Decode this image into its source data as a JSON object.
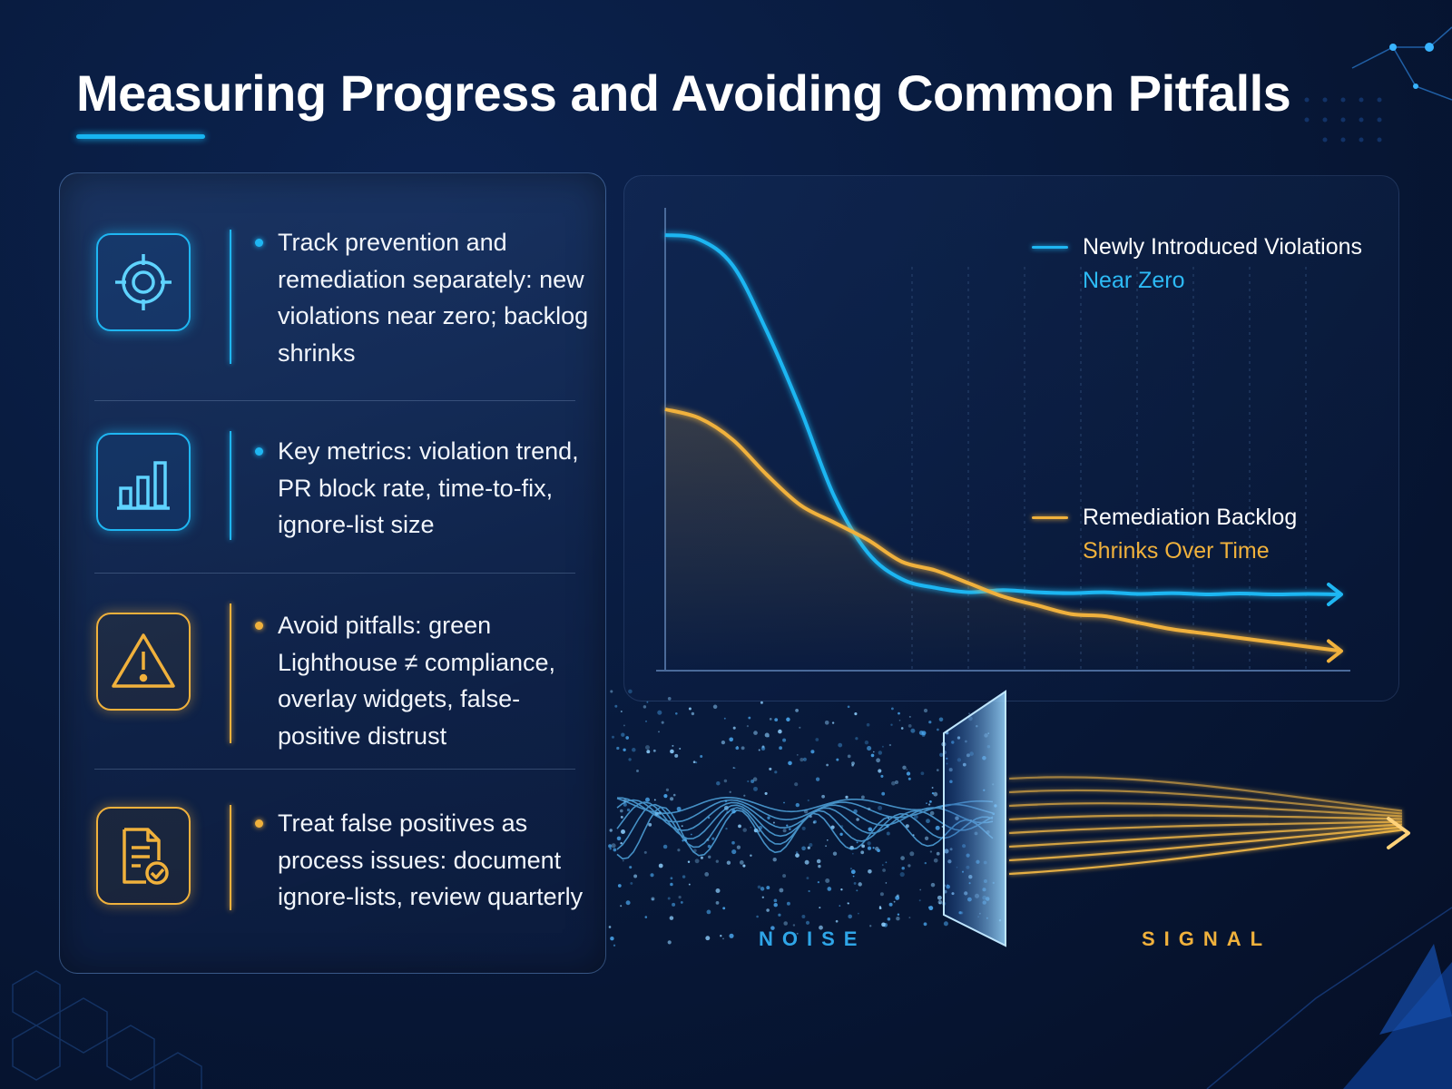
{
  "header": {
    "title": "Measuring Progress and Avoiding Common Pitfalls"
  },
  "colors": {
    "accent_cyan": "#1fb6f2",
    "accent_amber": "#f0b13c",
    "background": "#081a3c"
  },
  "items": [
    {
      "icon": "target-icon",
      "color": "cyan",
      "text": "Track prevention and remediation separately: new violations near zero; backlog shrinks"
    },
    {
      "icon": "bar-chart-icon",
      "color": "cyan",
      "text": "Key metrics: violation trend, PR block rate, time-to-fix, ignore-list size"
    },
    {
      "icon": "warning-icon",
      "color": "amber",
      "text": "Avoid pitfalls: green Lighthouse ≠ compliance, overlay widgets, false-positive distrust"
    },
    {
      "icon": "document-check-icon",
      "color": "amber",
      "text": "Treat false positives as process issues: document ignore-lists, review quarterly"
    }
  ],
  "chart_data": {
    "type": "line",
    "title": "",
    "xlabel": "",
    "ylabel": "",
    "grid": false,
    "legend_placement": "right",
    "series": [
      {
        "name": "Newly Introduced Violations",
        "annotation": "Near Zero",
        "color": "#1fb6f2",
        "values": [
          100,
          99,
          93,
          78,
          60,
          40,
          27,
          21,
          19,
          18,
          18.5,
          18,
          17.8,
          18,
          17.6,
          17.8,
          17.5,
          17.7,
          17.5,
          17.6,
          17.5
        ]
      },
      {
        "name": "Remediation Backlog",
        "annotation": "Shrinks Over Time",
        "color": "#f0b13c",
        "values": [
          60,
          58,
          53,
          45,
          38,
          34,
          30,
          25,
          23,
          20,
          17,
          15,
          13,
          12.5,
          11,
          9.5,
          8.5,
          7.5,
          6.5,
          5.5,
          4.5
        ]
      }
    ]
  },
  "flow": {
    "noise_label": "NOISE",
    "signal_label": "SIGNAL"
  }
}
